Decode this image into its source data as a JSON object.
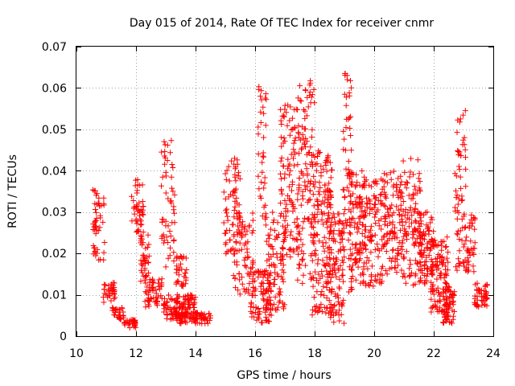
{
  "chart_data": {
    "type": "scatter",
    "title": "Day 015 of 2014, Rate Of TEC Index for receiver cnmr",
    "xlabel": "GPS time / hours",
    "ylabel": "ROTI / TECUs",
    "xlim": [
      10,
      24
    ],
    "ylim": [
      0,
      0.07
    ],
    "xticks": [
      "10",
      "12",
      "14",
      "16",
      "18",
      "20",
      "22",
      "24"
    ],
    "yticks": [
      "0",
      "0.01",
      "0.02",
      "0.03",
      "0.04",
      "0.05",
      "0.06",
      "0.07"
    ],
    "grid": true,
    "marker": "+",
    "color": "#ff0000",
    "series": [
      {
        "name": "ROTI",
        "clusters": [
          {
            "x": [
              10.55,
              10.95
            ],
            "y": [
              0.018,
              0.036
            ],
            "n": 50
          },
          {
            "x": [
              10.9,
              11.3
            ],
            "y": [
              0.008,
              0.013
            ],
            "n": 35
          },
          {
            "x": [
              11.2,
              11.6
            ],
            "y": [
              0.004,
              0.007
            ],
            "n": 30
          },
          {
            "x": [
              11.55,
              12.0
            ],
            "y": [
              0.002,
              0.004
            ],
            "n": 30
          },
          {
            "x": [
              11.85,
              12.25
            ],
            "y": [
              0.025,
              0.039
            ],
            "n": 45
          },
          {
            "x": [
              12.15,
              12.45
            ],
            "y": [
              0.012,
              0.025
            ],
            "n": 40
          },
          {
            "x": [
              12.3,
              12.9
            ],
            "y": [
              0.007,
              0.014
            ],
            "n": 55
          },
          {
            "x": [
              12.85,
              13.3
            ],
            "y": [
              0.015,
              0.048
            ],
            "n": 55
          },
          {
            "x": [
              12.9,
              13.4
            ],
            "y": [
              0.004,
              0.01
            ],
            "n": 45
          },
          {
            "x": [
              13.3,
              14.0
            ],
            "y": [
              0.003,
              0.01
            ],
            "n": 110
          },
          {
            "x": [
              13.35,
              13.7
            ],
            "y": [
              0.012,
              0.02
            ],
            "n": 35
          },
          {
            "x": [
              13.95,
              14.5
            ],
            "y": [
              0.003,
              0.006
            ],
            "n": 45
          },
          {
            "x": [
              14.95,
              15.5
            ],
            "y": [
              0.018,
              0.043
            ],
            "n": 70
          },
          {
            "x": [
              15.25,
              15.95
            ],
            "y": [
              0.01,
              0.03
            ],
            "n": 70
          },
          {
            "x": [
              15.85,
              16.55
            ],
            "y": [
              0.003,
              0.016
            ],
            "n": 90
          },
          {
            "x": [
              16.1,
              16.4
            ],
            "y": [
              0.028,
              0.063
            ],
            "n": 35
          },
          {
            "x": [
              16.35,
              17.0
            ],
            "y": [
              0.006,
              0.03
            ],
            "n": 90
          },
          {
            "x": [
              16.85,
              17.5
            ],
            "y": [
              0.018,
              0.056
            ],
            "n": 110
          },
          {
            "x": [
              17.4,
              18.0
            ],
            "y": [
              0.012,
              0.062
            ],
            "n": 120
          },
          {
            "x": [
              17.9,
              18.6
            ],
            "y": [
              0.005,
              0.045
            ],
            "n": 150
          },
          {
            "x": [
              18.4,
              19.0
            ],
            "y": [
              0.003,
              0.03
            ],
            "n": 120
          },
          {
            "x": [
              18.95,
              19.25
            ],
            "y": [
              0.025,
              0.064
            ],
            "n": 45
          },
          {
            "x": [
              19.1,
              19.7
            ],
            "y": [
              0.01,
              0.04
            ],
            "n": 120
          },
          {
            "x": [
              19.6,
              20.4
            ],
            "y": [
              0.012,
              0.038
            ],
            "n": 110
          },
          {
            "x": [
              20.3,
              21.0
            ],
            "y": [
              0.015,
              0.04
            ],
            "n": 110
          },
          {
            "x": [
              20.9,
              21.6
            ],
            "y": [
              0.012,
              0.043
            ],
            "n": 100
          },
          {
            "x": [
              21.5,
              22.0
            ],
            "y": [
              0.012,
              0.03
            ],
            "n": 90
          },
          {
            "x": [
              21.9,
              22.5
            ],
            "y": [
              0.005,
              0.024
            ],
            "n": 110
          },
          {
            "x": [
              22.3,
              22.7
            ],
            "y": [
              0.003,
              0.012
            ],
            "n": 60
          },
          {
            "x": [
              22.7,
              23.1
            ],
            "y": [
              0.015,
              0.055
            ],
            "n": 60
          },
          {
            "x": [
              23.0,
              23.4
            ],
            "y": [
              0.015,
              0.03
            ],
            "n": 45
          },
          {
            "x": [
              23.35,
              23.8
            ],
            "y": [
              0.007,
              0.013
            ],
            "n": 45
          }
        ]
      }
    ]
  }
}
